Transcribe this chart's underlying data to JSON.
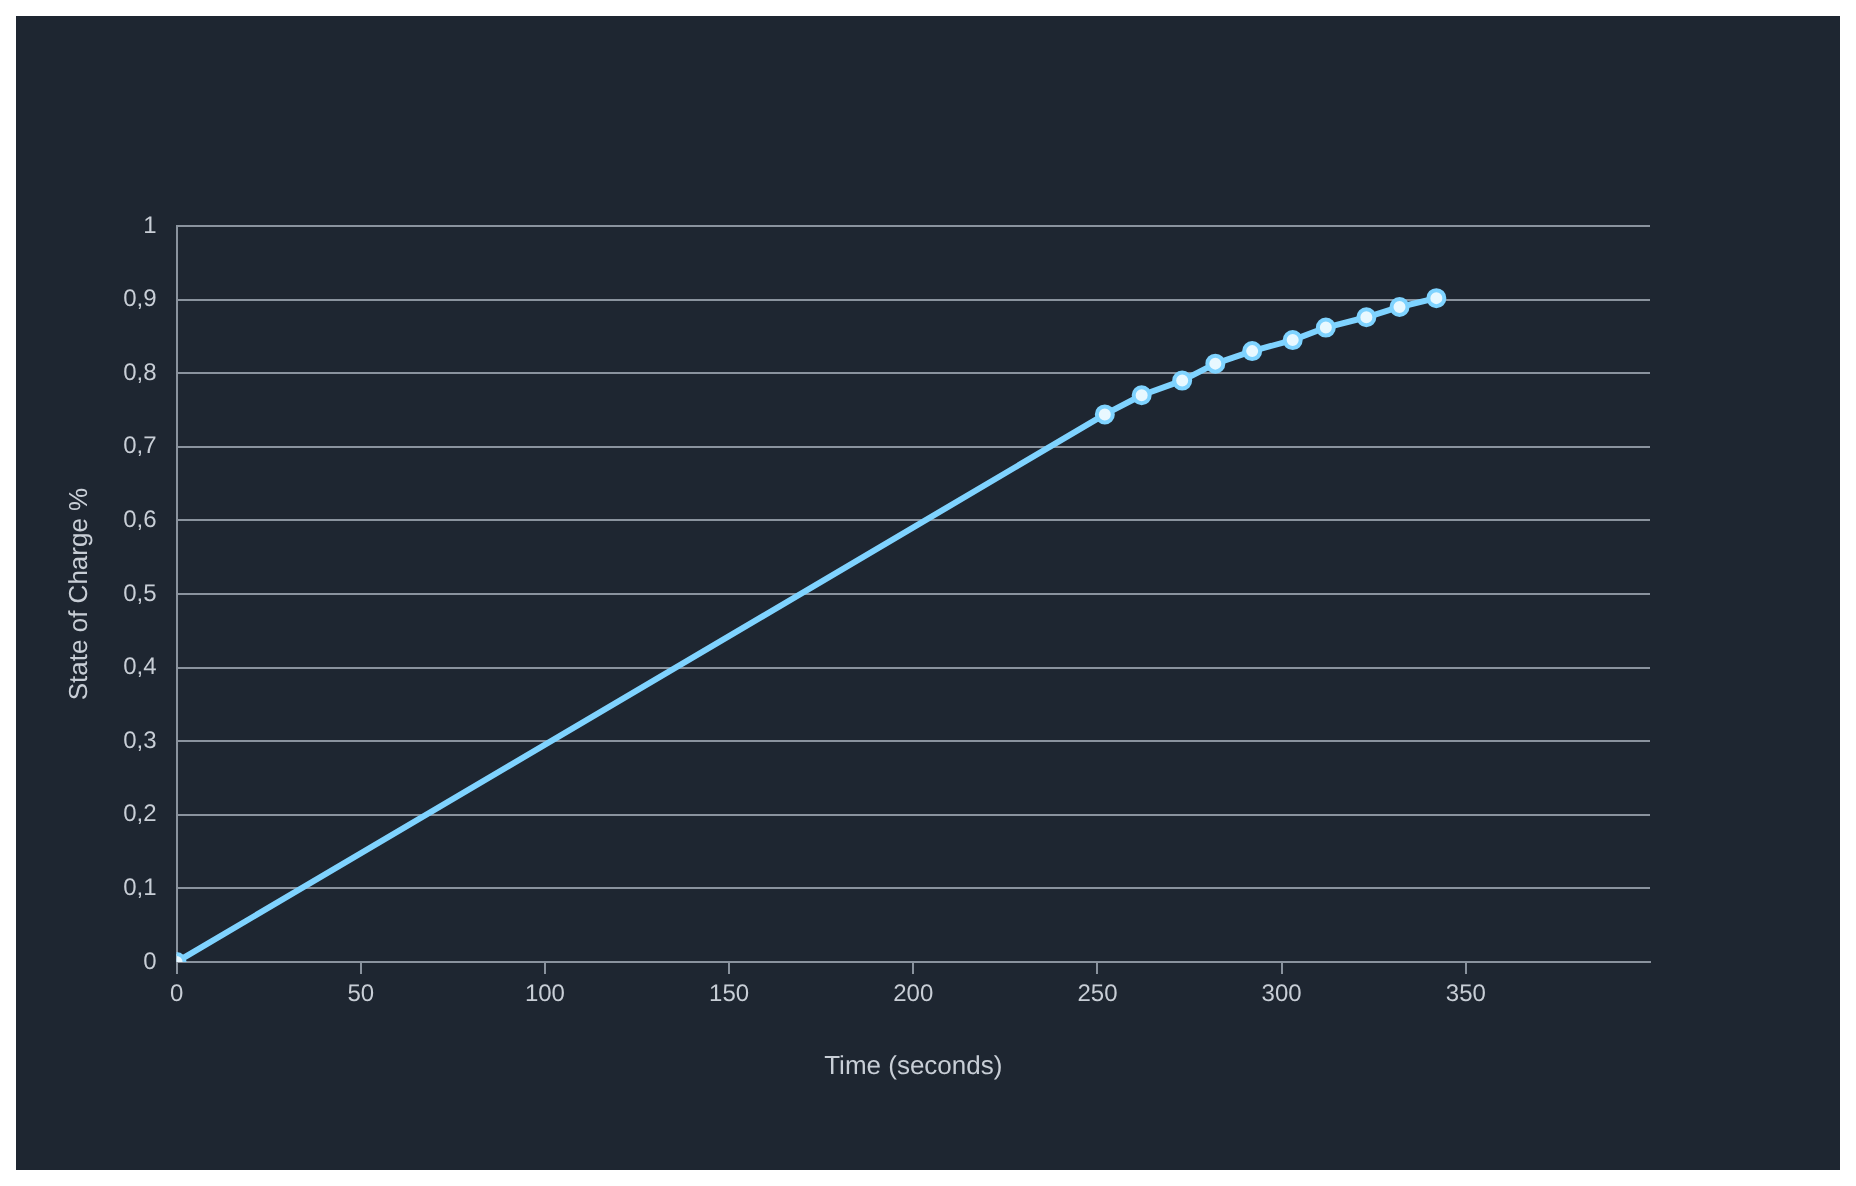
{
  "chart_data": {
    "type": "line",
    "xlabel": "Time (seconds)",
    "ylabel": "State of Charge %",
    "x": [
      0,
      252,
      262,
      273,
      282,
      292,
      303,
      312,
      323,
      332,
      342
    ],
    "series": [
      {
        "color": "#7fd3ff",
        "values": [
          0,
          0.744,
          0.77,
          0.79,
          0.813,
          0.83,
          0.845,
          0.862,
          0.876,
          0.89,
          0.902
        ]
      }
    ],
    "xlim": [
      0,
      400
    ],
    "xticks": [
      0,
      50,
      100,
      150,
      200,
      250,
      300,
      350
    ],
    "ylim": [
      0,
      1
    ],
    "yticks": [
      {
        "value": 0,
        "label": "0"
      },
      {
        "value": 0.1,
        "label": "0,1"
      },
      {
        "value": 0.2,
        "label": "0,2"
      },
      {
        "value": 0.3,
        "label": "0,3"
      },
      {
        "value": 0.4,
        "label": "0,4"
      },
      {
        "value": 0.5,
        "label": "0,5"
      },
      {
        "value": 0.6,
        "label": "0,6"
      },
      {
        "value": 0.7,
        "label": "0,7"
      },
      {
        "value": 0.8,
        "label": "0,8"
      },
      {
        "value": 0.9,
        "label": "0,9"
      },
      {
        "value": 1,
        "label": "1"
      }
    ],
    "grid": "y",
    "legend": false,
    "marker": "circle",
    "line_style": "solid"
  }
}
